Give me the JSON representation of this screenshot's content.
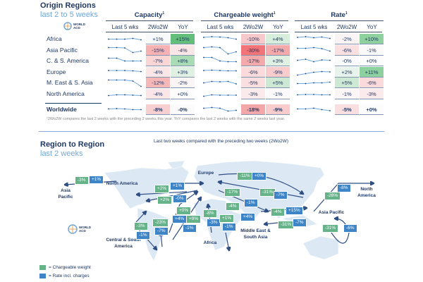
{
  "origin": {
    "title": "Origin Regions",
    "subtitle": "last 2 to 5 weeks"
  },
  "logo": {
    "line1": "WORLD",
    "line2": "ACD"
  },
  "groups": [
    {
      "title": "Capacity",
      "sup": "1"
    },
    {
      "title": "Chargeable weight",
      "sup": "1"
    },
    {
      "title": "Rate",
      "sup": "1"
    }
  ],
  "subheads": {
    "spark": "Last 5 wks",
    "ww": "2Wo2W",
    "yoy": "YoY"
  },
  "rows": [
    {
      "name": "Africa",
      "cap": {
        "spark": [
          50,
          50,
          50,
          52,
          48
        ],
        "ww": "+1%",
        "wwc": "#f7f9fb",
        "yoy": "+15%",
        "yoyc": "#63be7b"
      },
      "cw": {
        "spark": [
          55,
          57,
          56,
          54,
          50
        ],
        "ww": "-10%",
        "wwc": "#f8c9cb",
        "yoy": "+4%",
        "yoyc": "#d8eedd"
      },
      "rate": {
        "spark": [
          55,
          57,
          54,
          56,
          52
        ],
        "ww": "-2%",
        "wwc": "#faf4f5",
        "yoy": "+10%",
        "yoyc": "#8fd09f"
      }
    },
    {
      "name": "Asia Pacific",
      "cap": {
        "spark": [
          58,
          58,
          57,
          44,
          48
        ],
        "ww": "-15%",
        "wwc": "#f6b1b3",
        "yoy": "-4%",
        "yoyc": "#fbe6e7"
      },
      "cw": {
        "spark": [
          58,
          60,
          58,
          40,
          46
        ],
        "ww": "-30%",
        "wwc": "#f07478",
        "yoy": "-17%",
        "yoyc": "#f4a9ab"
      },
      "rate": {
        "spark": [
          56,
          56,
          58,
          55,
          48
        ],
        "ww": "-6%",
        "wwc": "#fbe0e1",
        "yoy": "-1%",
        "yoyc": "#fcf9fa"
      }
    },
    {
      "name": "C. & S. America",
      "cap": {
        "spark": [
          58,
          58,
          50,
          50,
          50
        ],
        "ww": "-7%",
        "wwc": "#f9d5d6",
        "yoy": "+8%",
        "yoyc": "#a9dbb5"
      },
      "cw": {
        "spark": [
          60,
          60,
          50,
          48,
          48
        ],
        "ww": "-17%",
        "wwc": "#f4a9ab",
        "yoy": "+3%",
        "yoyc": "#e0f1e4"
      },
      "rate": {
        "spark": [
          52,
          55,
          48,
          53,
          52
        ],
        "ww": "-0%",
        "wwc": "#fcfbfc",
        "yoy": "+0%",
        "yoyc": "#fcfcfc"
      }
    },
    {
      "name": "Europe",
      "cap": {
        "spark": [
          55,
          55,
          55,
          54,
          52
        ],
        "ww": "-4%",
        "wwc": "#fbe6e7",
        "yoy": "+3%",
        "yoyc": "#e0f1e4"
      },
      "cw": {
        "spark": [
          55,
          56,
          55,
          54,
          54
        ],
        "ww": "-6%",
        "wwc": "#fadadb",
        "yoy": "-9%",
        "yoyc": "#f8cccd"
      },
      "rate": {
        "spark": [
          42,
          46,
          50,
          52,
          51
        ],
        "ww": "+2%",
        "wwc": "#e8f4eb",
        "yoy": "+11%",
        "yoyc": "#8fd09f"
      }
    },
    {
      "name": "M. East & S. Asia",
      "cap": {
        "spark": [
          58,
          58,
          58,
          55,
          40
        ],
        "ww": "-12%",
        "wwc": "#f6b7b9",
        "yoy": "-2%",
        "yoyc": "#faf4f5"
      },
      "cw": {
        "spark": [
          50,
          54,
          53,
          54,
          47
        ],
        "ww": "-5%",
        "wwc": "#fadfe0",
        "yoy": "+5%",
        "yoyc": "#cde9d4"
      },
      "rate": {
        "spark": [
          48,
          48,
          50,
          50,
          52
        ],
        "ww": "+5%",
        "wwc": "#cde9d4",
        "yoy": "-6%",
        "yoyc": "#fadadb"
      }
    },
    {
      "name": "North America",
      "cap": {
        "spark": [
          46,
          48,
          48,
          47,
          46
        ],
        "ww": "-4%",
        "wwc": "#fbe6e7",
        "yoy": "+0%",
        "yoyc": "#fcfcfc"
      },
      "cw": {
        "spark": [
          44,
          48,
          47,
          47,
          47
        ],
        "ww": "-3%",
        "wwc": "#fbeaeb",
        "yoy": "-1%",
        "yoyc": "#fcf9fa"
      },
      "rate": {
        "spark": [
          48,
          49,
          49,
          48,
          48
        ],
        "ww": "-1%",
        "wwc": "#fcf6f7",
        "yoy": "-3%",
        "yoyc": "#fbeaeb"
      }
    }
  ],
  "worldwide": {
    "name": "Worldwide",
    "cap": {
      "spark": [
        52,
        53,
        52,
        50,
        50
      ],
      "ww": "-8%",
      "wwc": "#f8cfd0",
      "yoy": "-0%",
      "yoyc": "#fcfbfc"
    },
    "cw": {
      "spark": [
        54,
        56,
        54,
        46,
        48
      ],
      "ww": "-18%",
      "wwc": "#f4a7a9",
      "yoy": "-9%",
      "yoyc": "#f8cccd"
    },
    "rate": {
      "spark": [
        52,
        52,
        54,
        50,
        47
      ],
      "ww": "-5%",
      "wwc": "#fadfe0",
      "yoy": "+0%",
      "yoyc": "#fcfcfc"
    }
  },
  "footnote": "¹2Wo2W compares the last 2 weeks with the preceding 2 weeks this year. YoY compares the last 2 weeks with the same 2 weeks last year.",
  "r2r": {
    "title": "Region to Region",
    "subtitle": "last 2 weeks",
    "caption": "Last two weeks compared with the preceding two weeks (2Wo2W)"
  },
  "map_labels": [
    "Asia Pacific",
    "North America",
    "Europe",
    "Central & South America",
    "Africa",
    "Middle East & South Asia",
    "Asia Pacific",
    "North America"
  ],
  "badges": [
    {
      "t": "g",
      "v": "-3%"
    },
    {
      "t": "b",
      "v": "+1%"
    },
    {
      "t": "g",
      "v": "+2%"
    },
    {
      "t": "b",
      "v": "+1%"
    },
    {
      "t": "g",
      "v": "+2%"
    },
    {
      "t": "b",
      "v": "-0%"
    },
    {
      "t": "g",
      "v": "+0%"
    },
    {
      "t": "b",
      "v": "+4%"
    },
    {
      "t": "g",
      "v": "+9%"
    },
    {
      "t": "b",
      "v": "-1%"
    },
    {
      "t": "g",
      "v": "-3%"
    },
    {
      "t": "b",
      "v": "-1%"
    },
    {
      "t": "g",
      "v": "-23%"
    },
    {
      "t": "b",
      "v": "-7%"
    },
    {
      "t": "g",
      "v": "-8%"
    },
    {
      "t": "b",
      "v": "-3%"
    },
    {
      "t": "g",
      "v": "+1%"
    },
    {
      "t": "b",
      "v": "-1%"
    },
    {
      "t": "g",
      "v": "-17%"
    },
    {
      "t": "g",
      "v": "-4%"
    },
    {
      "t": "b",
      "v": "+4%"
    },
    {
      "t": "b",
      "v": "-1%"
    },
    {
      "t": "g",
      "v": "-11%"
    },
    {
      "t": "b",
      "v": "+0%"
    },
    {
      "t": "g",
      "v": "-31%"
    },
    {
      "t": "b",
      "v": "-7%"
    },
    {
      "t": "g",
      "v": "-4%"
    },
    {
      "t": "b",
      "v": "+15%"
    },
    {
      "t": "g",
      "v": "-31%"
    },
    {
      "t": "b",
      "v": "-7%"
    },
    {
      "t": "g",
      "v": "-28%"
    },
    {
      "t": "b",
      "v": "-8%"
    },
    {
      "t": "g",
      "v": "-31%"
    },
    {
      "t": "b",
      "v": "-6%"
    }
  ],
  "legend": [
    {
      "label": "= Chargeable weight",
      "color": "#66b38a"
    },
    {
      "label": "= Rate incl. charges",
      "color": "#3d85c6"
    }
  ]
}
